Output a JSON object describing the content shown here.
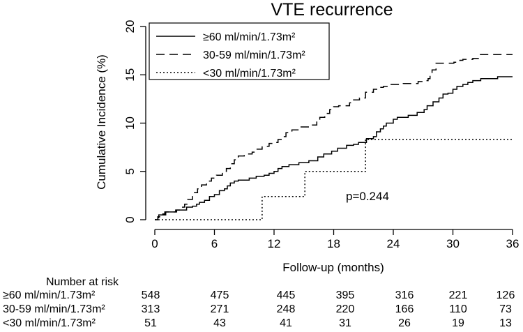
{
  "chart_data": {
    "type": "line",
    "title": "VTE recurrence",
    "xlabel": "Follow-up (months)",
    "ylabel": "Cumulative Incidence (%)",
    "xlim": [
      0,
      36
    ],
    "ylim": [
      0,
      20
    ],
    "xticks": [
      0,
      6,
      12,
      18,
      24,
      30,
      36
    ],
    "yticks": [
      0,
      5,
      10,
      15,
      20
    ],
    "grid": false,
    "legend_position": "top-left",
    "annotation": "p=0.244",
    "series": [
      {
        "name": "≥60 ml/min/1.73m²",
        "style": "solid",
        "points": [
          [
            0,
            0
          ],
          [
            0.3,
            0.2
          ],
          [
            0.4,
            0.5
          ],
          [
            1,
            0.5
          ],
          [
            1.1,
            0.8
          ],
          [
            2,
            0.8
          ],
          [
            2.1,
            1.0
          ],
          [
            3,
            1.0
          ],
          [
            3.2,
            1.3
          ],
          [
            3.8,
            1.4
          ],
          [
            4.2,
            1.6
          ],
          [
            4.5,
            1.8
          ],
          [
            5,
            2.0
          ],
          [
            5.5,
            2.4
          ],
          [
            6,
            2.6
          ],
          [
            6.5,
            3.0
          ],
          [
            7,
            3.2
          ],
          [
            7.3,
            3.5
          ],
          [
            7.6,
            3.8
          ],
          [
            8,
            4.0
          ],
          [
            8.4,
            4.1
          ],
          [
            9.5,
            4.3
          ],
          [
            10.2,
            4.5
          ],
          [
            11,
            4.6
          ],
          [
            11.5,
            4.8
          ],
          [
            12,
            5.0
          ],
          [
            12.4,
            5.3
          ],
          [
            12.8,
            5.5
          ],
          [
            13.5,
            5.7
          ],
          [
            14.5,
            5.9
          ],
          [
            15.5,
            6.1
          ],
          [
            16.4,
            6.5
          ],
          [
            17,
            6.8
          ],
          [
            17.8,
            7.1
          ],
          [
            18.4,
            7.4
          ],
          [
            19.3,
            7.7
          ],
          [
            20,
            7.8
          ],
          [
            20.5,
            8.0
          ],
          [
            21.3,
            8.4
          ],
          [
            22,
            8.6
          ],
          [
            22.3,
            9.1
          ],
          [
            22.7,
            9.4
          ],
          [
            23,
            9.7
          ],
          [
            23.3,
            10.0
          ],
          [
            24,
            10.4
          ],
          [
            24.4,
            10.6
          ],
          [
            25.5,
            10.8
          ],
          [
            26.4,
            11.1
          ],
          [
            27.1,
            11.4
          ],
          [
            27.4,
            11.8
          ],
          [
            28,
            12.2
          ],
          [
            28.6,
            12.6
          ],
          [
            29,
            13.0
          ],
          [
            29.5,
            13.1
          ],
          [
            30,
            13.5
          ],
          [
            30.4,
            13.8
          ],
          [
            31,
            14.0
          ],
          [
            31.5,
            14.2
          ],
          [
            32,
            14.4
          ],
          [
            32.8,
            14.6
          ],
          [
            33.5,
            14.6
          ],
          [
            34.5,
            14.8
          ],
          [
            36,
            14.8
          ]
        ]
      },
      {
        "name": "30-59 ml/min/1.73m²",
        "style": "dashed",
        "points": [
          [
            0,
            0
          ],
          [
            0.3,
            0.3
          ],
          [
            0.5,
            0.6
          ],
          [
            1,
            0.8
          ],
          [
            2.2,
            1.0
          ],
          [
            2.8,
            1.3
          ],
          [
            3,
            1.6
          ],
          [
            3.3,
            2.1
          ],
          [
            3.8,
            2.8
          ],
          [
            4.3,
            3.2
          ],
          [
            4.7,
            3.6
          ],
          [
            5.2,
            4.0
          ],
          [
            5.7,
            4.3
          ],
          [
            6.2,
            4.6
          ],
          [
            6.8,
            5.0
          ],
          [
            7.2,
            5.3
          ],
          [
            7.6,
            5.8
          ],
          [
            8,
            6.2
          ],
          [
            8.4,
            6.6
          ],
          [
            9,
            6.8
          ],
          [
            9.8,
            7.0
          ],
          [
            10.2,
            7.3
          ],
          [
            10.8,
            7.6
          ],
          [
            11.5,
            7.9
          ],
          [
            11.9,
            8.0
          ],
          [
            12.4,
            8.3
          ],
          [
            12.8,
            8.6
          ],
          [
            13.2,
            9.0
          ],
          [
            13.8,
            9.3
          ],
          [
            14.6,
            9.6
          ],
          [
            15.6,
            9.8
          ],
          [
            16.3,
            10.2
          ],
          [
            16.6,
            10.6
          ],
          [
            17.1,
            11.0
          ],
          [
            17.6,
            11.4
          ],
          [
            18,
            11.7
          ],
          [
            18.5,
            11.8
          ],
          [
            19.6,
            12.1
          ],
          [
            19.8,
            12.4
          ],
          [
            20.6,
            12.6
          ],
          [
            21.2,
            13.2
          ],
          [
            22,
            13.5
          ],
          [
            22.5,
            13.7
          ],
          [
            23,
            13.8
          ],
          [
            23.5,
            14.0
          ],
          [
            25,
            14.1
          ],
          [
            26.5,
            14.3
          ],
          [
            27,
            14.4
          ],
          [
            27.5,
            14.6
          ],
          [
            27.7,
            15.0
          ],
          [
            27.9,
            15.5
          ],
          [
            28.3,
            16.2
          ],
          [
            29.5,
            16.2
          ],
          [
            30.1,
            16.3
          ],
          [
            30.7,
            16.5
          ],
          [
            31,
            16.6
          ],
          [
            32,
            16.7
          ],
          [
            32.7,
            17.1
          ],
          [
            34,
            17.1
          ],
          [
            36,
            17.1
          ]
        ]
      },
      {
        "name": "<30 ml/min/1.73m²",
        "style": "dotted",
        "points": [
          [
            0,
            0
          ],
          [
            10.8,
            0
          ],
          [
            10.8,
            2.4
          ],
          [
            15.1,
            2.4
          ],
          [
            15.1,
            5.0
          ],
          [
            21.2,
            5.0
          ],
          [
            21.2,
            8.3
          ],
          [
            36,
            8.3
          ]
        ]
      }
    ],
    "risk_table": {
      "title": "Number at risk",
      "times": [
        0,
        6,
        12,
        18,
        24,
        30,
        36
      ],
      "rows": [
        {
          "label": "≥60 ml/min/1.73m²",
          "values": [
            548,
            475,
            445,
            395,
            316,
            221,
            126
          ]
        },
        {
          "label": "30-59 ml/min/1.73m²",
          "values": [
            313,
            271,
            248,
            220,
            166,
            110,
            73
          ]
        },
        {
          "label": "<30 ml/min/1.73m²",
          "values": [
            51,
            43,
            41,
            31,
            26,
            19,
            13
          ]
        }
      ]
    }
  }
}
